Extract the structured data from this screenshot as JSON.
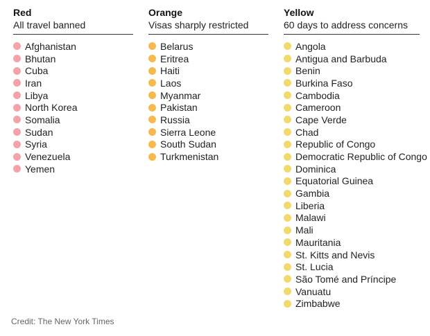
{
  "colors": {
    "red": "#f4a3a8",
    "orange": "#f6b94f",
    "yellow": "#f2d96b"
  },
  "columns": [
    {
      "key": "red",
      "title": "Red",
      "subtitle": "All travel banned",
      "dot_color": "#f4a3a8",
      "countries": [
        "Afghanistan",
        "Bhutan",
        "Cuba",
        "Iran",
        "Libya",
        "North Korea",
        "Somalia",
        "Sudan",
        "Syria",
        "Venezuela",
        "Yemen"
      ]
    },
    {
      "key": "orange",
      "title": "Orange",
      "subtitle": "Visas sharply restricted",
      "dot_color": "#f6b94f",
      "countries": [
        "Belarus",
        "Eritrea",
        "Haiti",
        "Laos",
        "Myanmar",
        "Pakistan",
        "Russia",
        "Sierra Leone",
        "South Sudan",
        "Turkmenistan"
      ]
    },
    {
      "key": "yellow",
      "title": "Yellow",
      "subtitle": "60 days to address concerns",
      "dot_color": "#f2d96b",
      "countries": [
        "Angola",
        "Antigua and Barbuda",
        "Benin",
        "Burkina Faso",
        "Cambodia",
        "Cameroon",
        "Cape Verde",
        "Chad",
        "Republic of Congo",
        "Democratic Republic of Congo",
        "Dominica",
        "Equatorial Guinea",
        "Gambia",
        "Liberia",
        "Malawi",
        "Mali",
        "Mauritania",
        "St. Kitts and Nevis",
        "St. Lucia",
        "São Tomé and Príncipe",
        "Vanuatu",
        "Zimbabwe"
      ]
    }
  ],
  "credit": "Credit: The New York Times"
}
